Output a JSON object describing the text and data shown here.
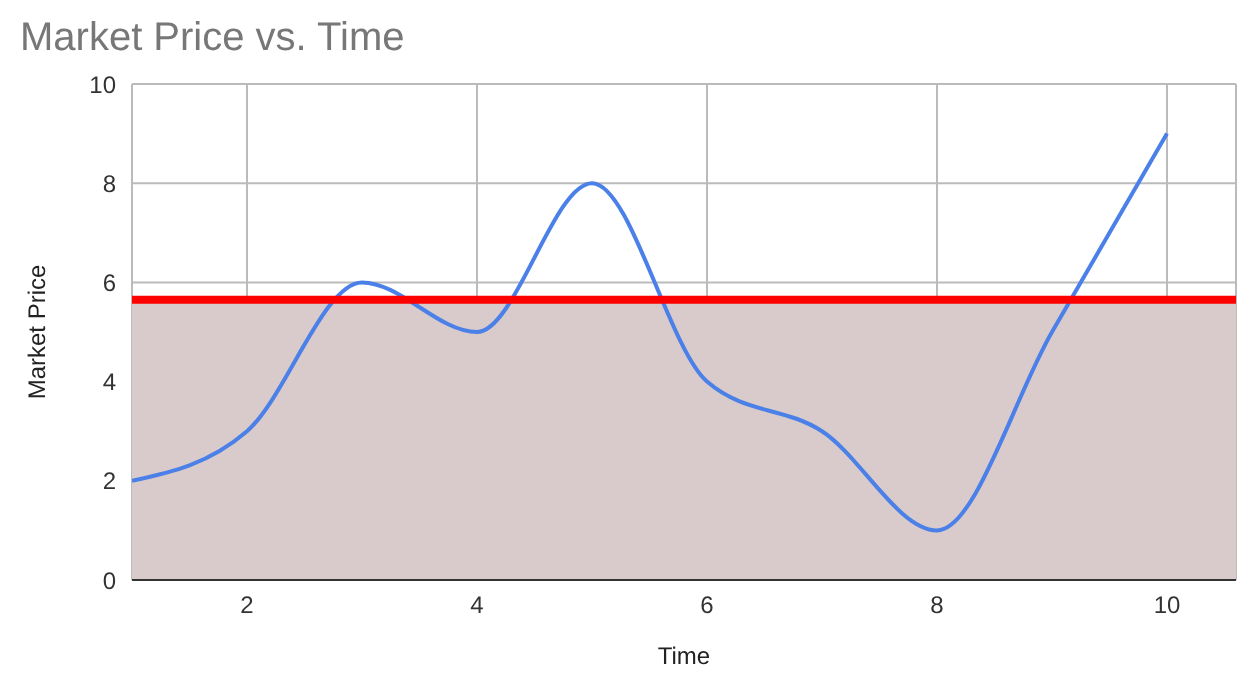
{
  "chart_data": {
    "type": "line",
    "title": "Market Price vs. Time",
    "xlabel": "Time",
    "ylabel": "Market Price",
    "x": [
      1,
      2,
      3,
      4,
      5,
      6,
      7,
      8,
      9,
      10
    ],
    "series": [
      {
        "color": "#4a80e8",
        "values": [
          2,
          3,
          6,
          5,
          8,
          4,
          3,
          1,
          5,
          9
        ]
      }
    ],
    "xlim": [
      1,
      10.6
    ],
    "xticks": [
      2,
      4,
      6,
      8,
      10
    ],
    "ylim": [
      0,
      10
    ],
    "yticks": [
      0,
      2,
      4,
      6,
      8,
      10
    ],
    "grid": true,
    "ref_lines": [
      {
        "axis": "y",
        "value": 5.65,
        "color": "#ff0000"
      }
    ],
    "bands": [
      {
        "axis": "y",
        "from": 0,
        "to": 5.65,
        "color": "#d9cbcb"
      }
    ]
  }
}
